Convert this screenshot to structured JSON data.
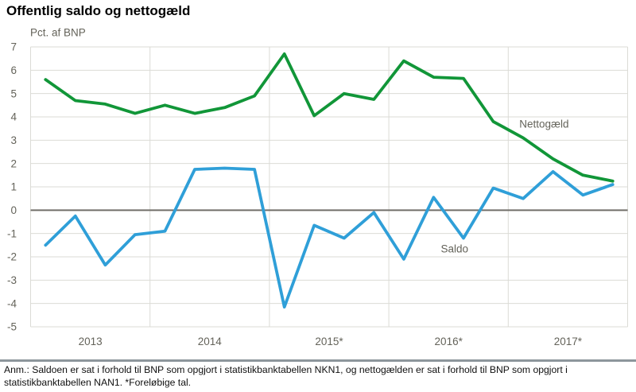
{
  "page": {
    "title": "Offentlig saldo og nettogæld",
    "footnote": "Anm.: Saldoen er sat i forhold til BNP som opgjort i statistikbanktabellen NKN1, og nettogælden er sat i forhold til BNP som opgjort i statistikbanktabellen NAN1. *Foreløbige tal."
  },
  "chart_data": {
    "type": "line",
    "title": "Offentlig saldo og nettogæld",
    "unit_label": "Pct. af BNP",
    "x_frequency": "quarterly",
    "x_categories": [
      "2013",
      "2014",
      "2015*",
      "2016*",
      "2017*"
    ],
    "points_per_category": 4,
    "ylim": [
      -5,
      7
    ],
    "ytick_step": 1,
    "grid": true,
    "zero_line": true,
    "legend": "inline-labels",
    "series": [
      {
        "name": "Nettogæld",
        "color": "#119638",
        "values": [
          5.6,
          4.7,
          4.55,
          4.15,
          4.5,
          4.15,
          4.4,
          4.9,
          6.7,
          4.05,
          5.0,
          4.75,
          6.4,
          5.7,
          5.65,
          3.8,
          3.1,
          2.2,
          1.5,
          1.25
        ],
        "label": {
          "text": "Nettogæld",
          "x_index": 17.2,
          "y_value": 3.69
        }
      },
      {
        "name": "Saldo",
        "color": "#2f9fd8",
        "values": [
          -1.5,
          -0.25,
          -2.35,
          -1.05,
          -0.9,
          1.75,
          1.8,
          1.75,
          -4.15,
          -0.65,
          -1.2,
          -0.1,
          -2.1,
          0.55,
          -1.2,
          0.95,
          0.5,
          1.65,
          0.65,
          1.1
        ],
        "label": {
          "text": "Saldo",
          "x_index": 14.2,
          "y_value": -1.66
        }
      }
    ],
    "colors": {
      "grid": "#dbdbd6",
      "zero_line": "#706e69",
      "axis_text": "#64635a",
      "background": "#ffffff"
    }
  }
}
